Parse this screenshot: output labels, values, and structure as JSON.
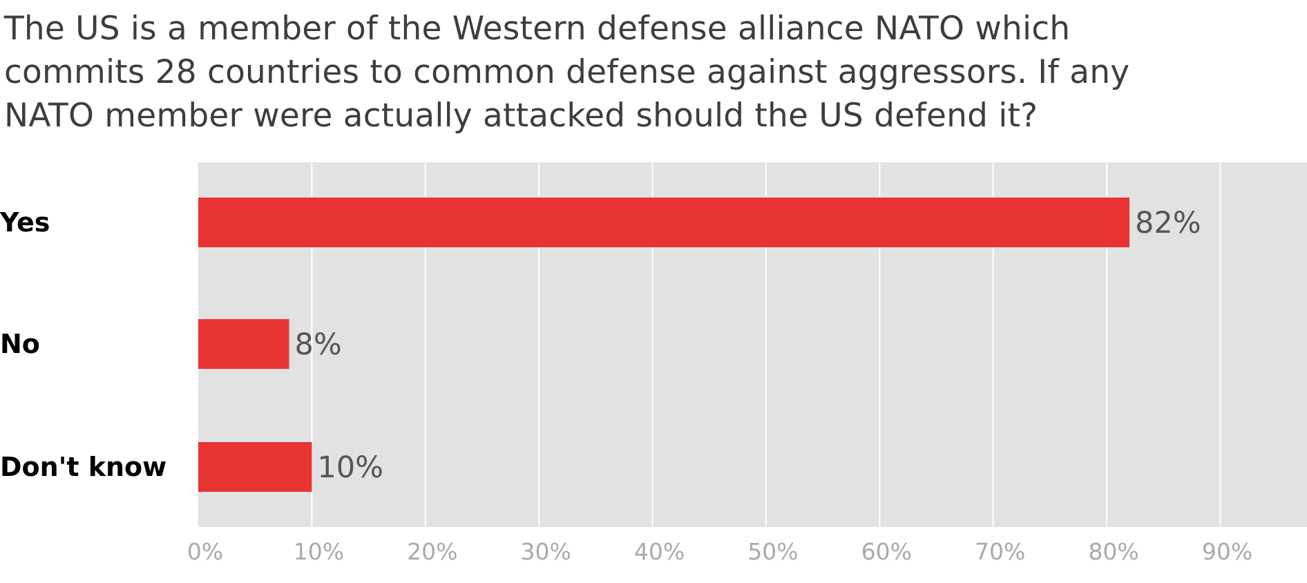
{
  "chart_data": {
    "type": "bar",
    "orientation": "horizontal",
    "title": "The US is a member of the Western defense alliance NATO which\ncommits 28 countries to common defense against aggressors. If any\nNATO member were actually attacked should the US defend it?",
    "categories": [
      "Yes",
      "No",
      "Don't know"
    ],
    "values": [
      82,
      8,
      10
    ],
    "value_labels": [
      "82%",
      "8%",
      "10%"
    ],
    "xticks": [
      0,
      10,
      20,
      30,
      40,
      50,
      60,
      70,
      80,
      90
    ],
    "xtick_labels": [
      "0%",
      "10%",
      "20%",
      "30%",
      "40%",
      "50%",
      "60%",
      "70%",
      "80%",
      "90%"
    ],
    "xlim": [
      0,
      97
    ],
    "xlabel": "",
    "ylabel": "",
    "grid": true,
    "legend": "none",
    "colors": {
      "bar": "#e93333",
      "plot_background": "#e2e2e2",
      "gridline": "#ffffff"
    }
  }
}
